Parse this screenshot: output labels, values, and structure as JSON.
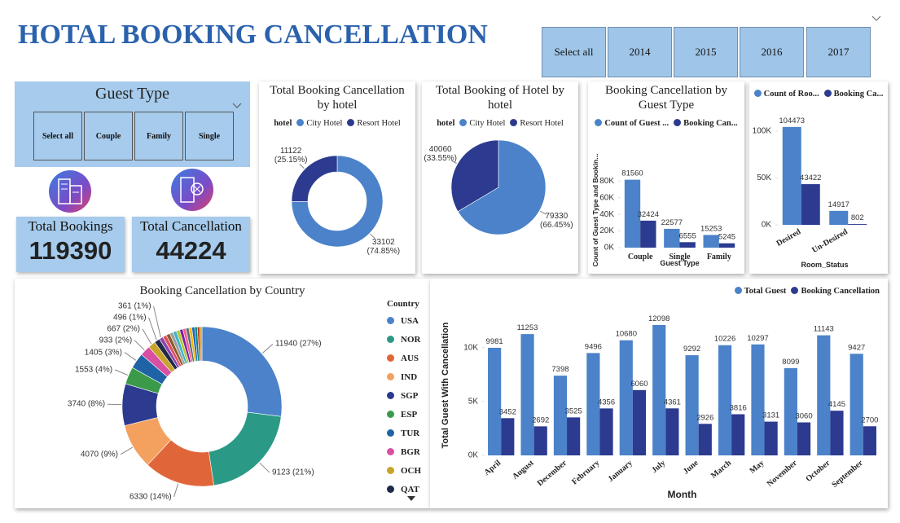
{
  "header": {
    "title": "HOTAL BOOKING CANCELLATION"
  },
  "year_slicer": {
    "items": [
      "Select all",
      "2014",
      "2015",
      "2016",
      "2017"
    ]
  },
  "guest_slicer": {
    "title": "Guest Type",
    "items": [
      "Select all",
      "Couple",
      "Family",
      "Single"
    ]
  },
  "kpis": [
    {
      "label": "Total Bookings",
      "value": 119390
    },
    {
      "label": "Total Cancellation",
      "value": 44224
    }
  ],
  "chart_data": [
    {
      "type": "donut",
      "title": "Total Booking Cancellation by hotel",
      "legend_title": "hotel",
      "categories": [
        "City Hotel",
        "Resort Hotel"
      ],
      "values": [
        33102,
        11122
      ],
      "value_labels": [
        "33102 (74.85%)",
        "11122 (25.15%)"
      ],
      "colors": [
        "#4b82c9",
        "#2c3a8f"
      ]
    },
    {
      "type": "pie",
      "title": "Total Booking of Hotel by hotel",
      "legend_title": "hotel",
      "categories": [
        "City Hotel",
        "Resort Hotel"
      ],
      "values": [
        79330,
        40060
      ],
      "value_labels": [
        "79330 (66.45%)",
        "40060 (33.55%)"
      ],
      "colors": [
        "#4b82c9",
        "#2c3a8f"
      ]
    },
    {
      "type": "bar",
      "title": "Booking Cancellation by Guest Type",
      "categories": [
        "Couple",
        "Single",
        "Family"
      ],
      "series": [
        {
          "name": "Count of Guest ...",
          "color": "#4b82c9",
          "values": [
            81560,
            22577,
            15253
          ]
        },
        {
          "name": "Booking Can...",
          "color": "#2c3a8f",
          "values": [
            32424,
            6555,
            5245
          ]
        }
      ],
      "ylim": [
        0,
        90000
      ],
      "yticks": [
        {
          "value": 0,
          "label": "0K"
        },
        {
          "value": 20000,
          "label": "20K"
        },
        {
          "value": 40000,
          "label": "40K"
        },
        {
          "value": 60000,
          "label": "60K"
        },
        {
          "value": 80000,
          "label": "80K"
        }
      ],
      "y_label": "Count of Guest Type and Bookin...",
      "x_label": "Guest Type",
      "grid": false
    },
    {
      "type": "bar",
      "categories": [
        "Desired",
        "Un-Desired"
      ],
      "series": [
        {
          "name": "Count of Roo...",
          "color": "#4b82c9",
          "values": [
            104473,
            14917
          ]
        },
        {
          "name": "Booking Ca...",
          "color": "#2c3a8f",
          "values": [
            43422,
            802
          ]
        }
      ],
      "ylim": [
        0,
        110000
      ],
      "yticks": [
        {
          "value": 0,
          "label": "0K"
        },
        {
          "value": 50000,
          "label": "50K"
        },
        {
          "value": 100000,
          "label": "100K"
        }
      ],
      "x_label": "Room_Status",
      "grid": false
    },
    {
      "type": "donut",
      "title": "Booking Cancellation by Country",
      "legend_title": "Country",
      "categories": [
        "USA",
        "NOR",
        "AUS",
        "IND",
        "SGP",
        "ESP",
        "TUR",
        "BGR",
        "OCH",
        "QAT",
        null,
        null,
        null,
        null,
        null,
        null,
        null,
        null,
        null,
        null,
        null,
        null,
        null,
        null
      ],
      "values": [
        11940,
        9123,
        6330,
        4070,
        3740,
        1553,
        1405,
        933,
        667,
        496,
        361,
        340,
        330,
        320,
        310,
        300,
        290,
        280,
        270,
        260,
        250,
        240,
        216,
        200
      ],
      "value_labels": [
        "11940 (27%)",
        "9123 (21%)",
        "6330 (14%)",
        "4070 (9%)",
        "3740 (8%)",
        "1553 (4%)",
        "1405 (3%)",
        "933 (2%)",
        "667 (2%)",
        "496 (1%)",
        "361 (1%)",
        null,
        null,
        null,
        null,
        null,
        null,
        null,
        null,
        null,
        null,
        null,
        null,
        null
      ],
      "colors": [
        "#4b82c9",
        "#2a9a86",
        "#e0663a",
        "#f4a05e",
        "#2c3a8f",
        "#3a9a4a",
        "#1f63a6",
        "#d94fa2",
        "#c8a42a",
        "#1f2a4a",
        "#8e44ad",
        "#e04f5f",
        "#8a5a2b",
        "#9e9e9e",
        "#3cb4c8",
        "#b5c934",
        "#7b1fa2",
        "#f06292",
        "#546e7a",
        "#ffb300",
        "#1565c0",
        "#00897b",
        "#c0392b",
        "#d4a017"
      ]
    },
    {
      "type": "bar",
      "categories": [
        "April",
        "August",
        "December",
        "February",
        "January",
        "July",
        "June",
        "March",
        "May",
        "November",
        "October",
        "September"
      ],
      "series": [
        {
          "name": "Total Guest",
          "color": "#4b82c9",
          "values": [
            9981,
            11253,
            7398,
            9496,
            10680,
            12098,
            9292,
            10226,
            10297,
            8099,
            11143,
            9427
          ]
        },
        {
          "name": "Booking Cancellation",
          "color": "#2c3a8f",
          "values": [
            3452,
            2692,
            3525,
            4356,
            6060,
            4361,
            2926,
            3816,
            3131,
            3060,
            4145,
            2700
          ]
        }
      ],
      "ylim": [
        0,
        13000
      ],
      "yticks": [
        {
          "value": 0,
          "label": "0K"
        },
        {
          "value": 5000,
          "label": "5K"
        },
        {
          "value": 10000,
          "label": "10K"
        }
      ],
      "y_label": "Total Guest With Cancellation",
      "x_label": "Month",
      "grid": false
    }
  ]
}
